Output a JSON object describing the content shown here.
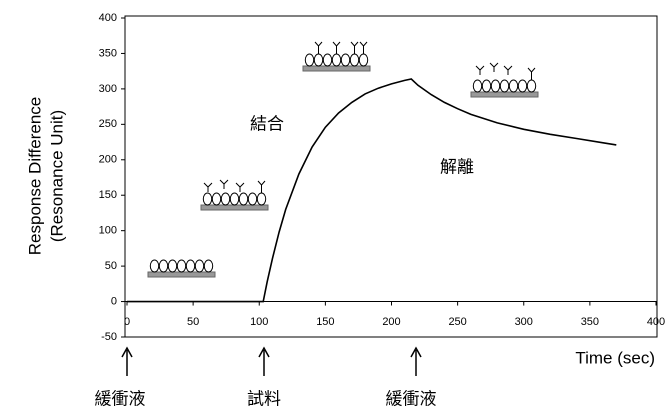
{
  "chart_data": {
    "type": "line",
    "y_label_lines": [
      "Response Difference",
      "(Resonance Unit)"
    ],
    "x_label": "Time (sec)",
    "annotations": [
      "結合",
      "解離"
    ],
    "arrow_labels": [
      "緩衝液",
      "試料",
      "緩衝液"
    ],
    "x": [
      0,
      20,
      40,
      60,
      80,
      100,
      103,
      106,
      110,
      115,
      120,
      130,
      140,
      150,
      160,
      170,
      180,
      190,
      200,
      210,
      215,
      220,
      230,
      240,
      250,
      260,
      280,
      300,
      320,
      340,
      360,
      370
    ],
    "values": [
      0,
      0,
      0,
      0,
      0,
      0,
      0,
      28,
      61,
      98,
      130,
      180,
      218,
      246,
      266,
      281,
      293,
      301,
      307,
      312,
      314,
      305,
      292,
      281,
      272,
      264,
      252,
      243,
      236,
      230,
      224,
      221
    ],
    "color": "#000000",
    "xlim": [
      0,
      400
    ],
    "xticks": [
      0,
      50,
      100,
      150,
      200,
      250,
      300,
      350,
      400
    ],
    "ylim": [
      -50,
      400
    ],
    "yticks": [
      -50,
      0,
      50,
      100,
      150,
      200,
      250,
      300,
      350,
      400
    ]
  }
}
